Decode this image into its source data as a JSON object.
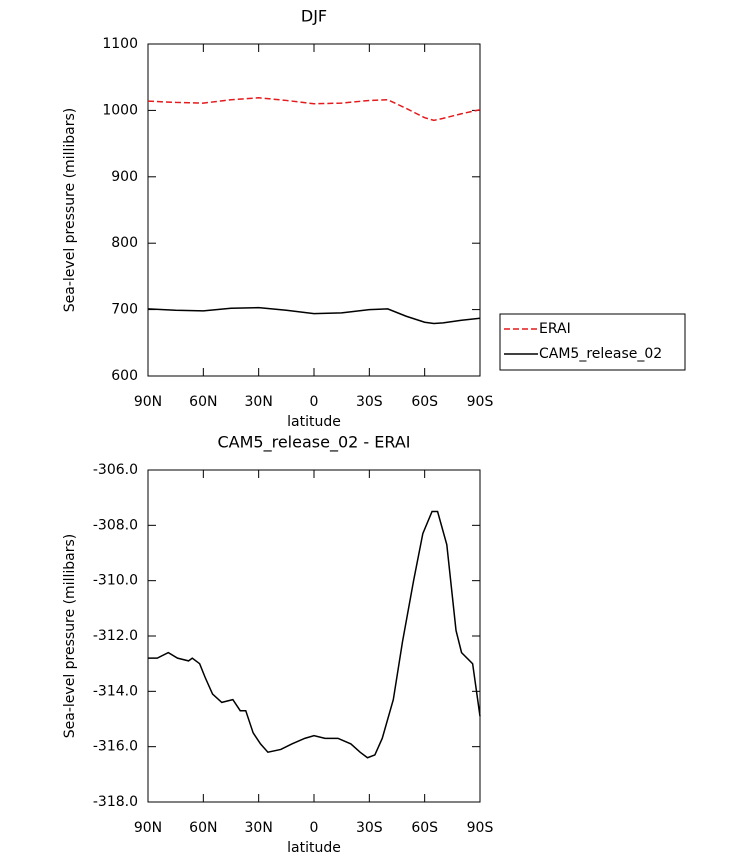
{
  "chart_data": [
    {
      "type": "line",
      "title": "DJF",
      "xlabel": "latitude",
      "ylabel": "Sea-level pressure (millibars)",
      "x": [
        90,
        75,
        60,
        45,
        30,
        15,
        0,
        -15,
        -30,
        -40,
        -50,
        -60,
        -65,
        -70,
        -80,
        -90
      ],
      "series": [
        {
          "name": "ERAI",
          "color": "#e41a1c",
          "dash": true,
          "values": [
            1014,
            1012,
            1011,
            1016,
            1019,
            1015,
            1010,
            1011,
            1015,
            1016,
            1003,
            989,
            985,
            988,
            995,
            1001
          ]
        },
        {
          "name": "CAM5_release_02",
          "color": "#000000",
          "dash": false,
          "values": [
            701,
            699,
            698,
            702,
            703,
            699,
            694,
            695,
            700,
            701,
            690,
            681,
            679,
            680,
            684,
            687
          ]
        }
      ],
      "xlim": [
        90,
        -90
      ],
      "xticks": [
        {
          "value": 90,
          "label": "90N"
        },
        {
          "value": 60,
          "label": "60N"
        },
        {
          "value": 30,
          "label": "30N"
        },
        0,
        {
          "value": -30,
          "label": "30S"
        },
        {
          "value": -60,
          "label": "60S"
        },
        {
          "value": -90,
          "label": "90S"
        }
      ],
      "ylim": [
        600,
        1100
      ],
      "yticks": [
        600,
        700,
        800,
        900,
        1000,
        1100
      ],
      "legend": "outside-right"
    },
    {
      "type": "line",
      "title": "CAM5_release_02 - ERAI",
      "xlabel": "latitude",
      "ylabel": "Sea-level pressure (millibars)",
      "x": [
        90,
        85,
        79,
        74,
        68,
        66,
        62,
        59,
        55,
        50,
        44,
        40,
        37,
        33,
        29,
        25,
        18,
        12,
        5,
        0,
        -6,
        -13,
        -20,
        -25,
        -29,
        -33,
        -37,
        -43,
        -48,
        -54,
        -59,
        -64,
        -67,
        -72,
        -77,
        -80,
        -86,
        -90
      ],
      "values": [
        -312.8,
        -312.8,
        -312.6,
        -312.8,
        -312.9,
        -312.8,
        -313.0,
        -313.5,
        -314.1,
        -314.4,
        -314.3,
        -314.7,
        -314.7,
        -315.5,
        -315.9,
        -316.2,
        -316.1,
        -315.9,
        -315.7,
        -315.6,
        -315.7,
        -315.7,
        -315.9,
        -316.2,
        -316.4,
        -316.3,
        -315.7,
        -314.3,
        -312.2,
        -310.0,
        -308.3,
        -307.5,
        -307.5,
        -308.7,
        -311.8,
        -312.6,
        -313.0,
        -314.9
      ],
      "color": "#000000",
      "xlim": [
        90,
        -90
      ],
      "xticks": [
        {
          "value": 90,
          "label": "90N"
        },
        {
          "value": 60,
          "label": "60N"
        },
        {
          "value": 30,
          "label": "30N"
        },
        0,
        {
          "value": -30,
          "label": "30S"
        },
        {
          "value": -60,
          "label": "60S"
        },
        {
          "value": -90,
          "label": "90S"
        }
      ],
      "ylim": [
        -318,
        -306
      ],
      "yticks": [
        {
          "value": -318,
          "label": "-318.0"
        },
        {
          "value": -316,
          "label": "-316.0"
        },
        {
          "value": -314,
          "label": "-314.0"
        },
        {
          "value": -312,
          "label": "-312.0"
        },
        {
          "value": -310,
          "label": "-310.0"
        },
        {
          "value": -308,
          "label": "-308.0"
        },
        {
          "value": -306,
          "label": "-306.0"
        }
      ]
    }
  ]
}
